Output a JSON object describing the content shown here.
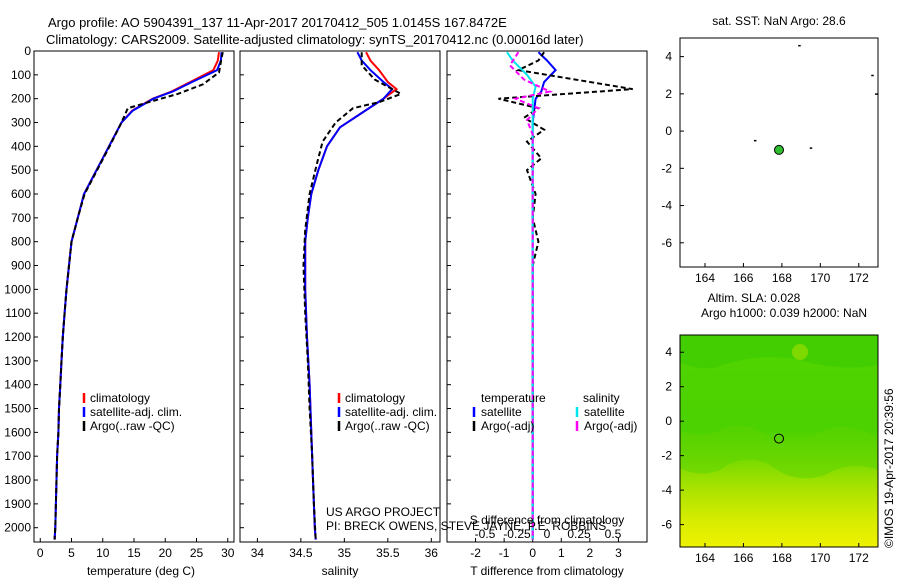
{
  "header": {
    "line1": "Argo profile: AO 5904391_137 11-Apr-2017 20170412_505 1.0145S 167.8472E",
    "line2": "Climatology: CARS2009. Satellite-adjusted climatology: synTS_20170412.nc (0.00016d later)"
  },
  "credit": {
    "line1": "US ARGO PROJECT",
    "line2": "PI: BRECK OWENS, STEVE JAYNE, P.E. ROBBINS"
  },
  "side_stamp": "©IMOS 19-Apr-2017 20:39:56",
  "colors": {
    "climatology": "#ff0000",
    "satellite": "#0000ff",
    "argo": "#000000",
    "sal_satellite": "#00e5ee",
    "sal_argo": "#ff00ff",
    "map_marker": "#2fbf2f"
  },
  "chart_data": [
    {
      "type": "line",
      "id": "temperature",
      "xlabel": "temperature (deg C)",
      "ylabel": "",
      "xlim": [
        -1,
        31
      ],
      "ylim": [
        2060,
        0
      ],
      "xticks": [
        0,
        5,
        10,
        15,
        20,
        25,
        30
      ],
      "yticks": [
        0,
        100,
        200,
        300,
        400,
        500,
        600,
        700,
        800,
        900,
        1000,
        1100,
        1200,
        1300,
        1400,
        1500,
        1600,
        1700,
        1800,
        1900,
        2000
      ],
      "legend": [
        "climatology",
        "satellite-adj. clim.",
        "Argo(..raw -QC)"
      ],
      "series": [
        {
          "name": "climatology",
          "style": "solid",
          "points": [
            [
              28.6,
              5
            ],
            [
              28.4,
              40
            ],
            [
              27.7,
              80
            ],
            [
              24,
              130
            ],
            [
              21,
              170
            ],
            [
              18,
              200
            ],
            [
              14.7,
              250
            ],
            [
              13,
              300
            ],
            [
              11,
              400
            ],
            [
              9,
              500
            ],
            [
              7,
              600
            ],
            [
              6,
              700
            ],
            [
              5,
              800
            ],
            [
              4.6,
              900
            ],
            [
              4.2,
              1000
            ],
            [
              3.9,
              1100
            ],
            [
              3.6,
              1200
            ],
            [
              3.4,
              1300
            ],
            [
              3.2,
              1400
            ],
            [
              3,
              1500
            ],
            [
              2.9,
              1600
            ],
            [
              2.7,
              1700
            ],
            [
              2.6,
              1800
            ],
            [
              2.5,
              1900
            ],
            [
              2.4,
              2000
            ],
            [
              2.3,
              2050
            ]
          ]
        },
        {
          "name": "satellite-adj. clim.",
          "style": "solid",
          "points": [
            [
              29,
              5
            ],
            [
              28.9,
              40
            ],
            [
              28.3,
              80
            ],
            [
              24.3,
              130
            ],
            [
              21.2,
              170
            ],
            [
              18.1,
              200
            ],
            [
              14.8,
              250
            ],
            [
              13,
              300
            ],
            [
              11,
              400
            ],
            [
              9,
              500
            ],
            [
              7,
              600
            ],
            [
              6,
              700
            ],
            [
              5,
              800
            ],
            [
              4.6,
              900
            ],
            [
              4.2,
              1000
            ],
            [
              3.9,
              1100
            ],
            [
              3.6,
              1200
            ],
            [
              3.4,
              1300
            ],
            [
              3.2,
              1400
            ],
            [
              3,
              1500
            ],
            [
              2.9,
              1600
            ],
            [
              2.7,
              1700
            ],
            [
              2.6,
              1800
            ],
            [
              2.5,
              1900
            ],
            [
              2.4,
              2000
            ],
            [
              2.3,
              2050
            ]
          ]
        },
        {
          "name": "Argo(..raw -QC)",
          "style": "dashed",
          "points": [
            [
              29.2,
              5
            ],
            [
              29,
              30
            ],
            [
              28.8,
              60
            ],
            [
              28.6,
              90
            ],
            [
              26,
              140
            ],
            [
              22,
              180
            ],
            [
              16,
              225
            ],
            [
              14,
              240
            ],
            [
              13,
              300
            ],
            [
              11.1,
              400
            ],
            [
              9.1,
              500
            ],
            [
              7.1,
              600
            ],
            [
              6,
              700
            ],
            [
              5,
              800
            ],
            [
              4.6,
              900
            ],
            [
              4.2,
              1000
            ],
            [
              3.9,
              1100
            ],
            [
              3.6,
              1200
            ],
            [
              3.4,
              1300
            ],
            [
              3.2,
              1400
            ],
            [
              3,
              1500
            ],
            [
              2.9,
              1600
            ],
            [
              2.7,
              1700
            ],
            [
              2.6,
              1800
            ],
            [
              2.5,
              1900
            ],
            [
              2.4,
              2000
            ],
            [
              2.3,
              2050
            ]
          ]
        }
      ]
    },
    {
      "type": "line",
      "id": "salinity",
      "xlabel": "salinity",
      "ylabel": "",
      "xlim": [
        33.8,
        36.1
      ],
      "ylim": [
        2060,
        0
      ],
      "xticks": [
        34,
        34.5,
        35,
        35.5,
        36
      ],
      "legend": [
        "climatology",
        "satellite-adj. clim.",
        "Argo(..raw -QC)"
      ],
      "series": [
        {
          "name": "climatology",
          "style": "solid",
          "points": [
            [
              35.25,
              5
            ],
            [
              35.3,
              40
            ],
            [
              35.4,
              80
            ],
            [
              35.5,
              130
            ],
            [
              35.6,
              160
            ],
            [
              35.45,
              200
            ],
            [
              35.2,
              260
            ],
            [
              34.95,
              320
            ],
            [
              34.8,
              400
            ],
            [
              34.7,
              500
            ],
            [
              34.62,
              600
            ],
            [
              34.58,
              700
            ],
            [
              34.55,
              800
            ],
            [
              34.55,
              1000
            ],
            [
              34.57,
              1200
            ],
            [
              34.6,
              1400
            ],
            [
              34.62,
              1600
            ],
            [
              34.64,
              1800
            ],
            [
              34.66,
              2000
            ],
            [
              34.67,
              2050
            ]
          ]
        },
        {
          "name": "satellite-adj. clim.",
          "style": "solid",
          "points": [
            [
              35.15,
              5
            ],
            [
              35.2,
              40
            ],
            [
              35.3,
              80
            ],
            [
              35.45,
              130
            ],
            [
              35.55,
              160
            ],
            [
              35.45,
              200
            ],
            [
              35.2,
              260
            ],
            [
              34.95,
              320
            ],
            [
              34.8,
              400
            ],
            [
              34.7,
              500
            ],
            [
              34.62,
              600
            ],
            [
              34.58,
              700
            ],
            [
              34.55,
              800
            ],
            [
              34.55,
              1000
            ],
            [
              34.57,
              1200
            ],
            [
              34.6,
              1400
            ],
            [
              34.62,
              1600
            ],
            [
              34.64,
              1800
            ],
            [
              34.66,
              2000
            ],
            [
              34.67,
              2050
            ]
          ]
        },
        {
          "name": "Argo(..raw -QC)",
          "style": "dashed",
          "points": [
            [
              35.2,
              5
            ],
            [
              35.2,
              60
            ],
            [
              35.35,
              120
            ],
            [
              35.65,
              180
            ],
            [
              35.4,
              215
            ],
            [
              35.1,
              240
            ],
            [
              34.9,
              300
            ],
            [
              34.75,
              380
            ],
            [
              34.68,
              480
            ],
            [
              34.6,
              600
            ],
            [
              34.55,
              750
            ],
            [
              34.53,
              900
            ],
            [
              34.55,
              1100
            ],
            [
              34.58,
              1300
            ],
            [
              34.6,
              1500
            ],
            [
              34.63,
              1700
            ],
            [
              34.65,
              1900
            ],
            [
              34.67,
              2050
            ]
          ]
        }
      ]
    },
    {
      "type": "line",
      "id": "difference",
      "xlabel": "T difference from climatology",
      "ylabel": "",
      "xlim": [
        -3,
        4
      ],
      "ylim": [
        2060,
        0
      ],
      "xticks": [
        -2,
        -1,
        0,
        1,
        2,
        3
      ],
      "secondary_axis_label": "S difference from climatology",
      "secondary_ticks": [
        "-0.5",
        "-0.25",
        "0",
        "0.25",
        "0.5"
      ],
      "legend_headers": [
        "temperature",
        "salinity"
      ],
      "legend": [
        "satellite",
        "Argo(-adj)",
        "satellite",
        "Argo(-adj)"
      ],
      "series": [
        {
          "name": "satellite",
          "group": "temperature",
          "style": "solid",
          "points": [
            [
              0.2,
              5
            ],
            [
              0.5,
              40
            ],
            [
              0.8,
              80
            ],
            [
              0.4,
              130
            ],
            [
              0.3,
              170
            ],
            [
              0.1,
              200
            ],
            [
              0,
              300
            ],
            [
              0,
              600
            ],
            [
              0,
              1000
            ],
            [
              0,
              1400
            ],
            [
              0,
              2050
            ]
          ]
        },
        {
          "name": "Argo(-adj)",
          "group": "temperature",
          "style": "dashed",
          "points": [
            [
              0.4,
              5
            ],
            [
              0.2,
              40
            ],
            [
              -0.5,
              80
            ],
            [
              3.5,
              160
            ],
            [
              -1.2,
              200
            ],
            [
              0.2,
              240
            ],
            [
              -0.3,
              280
            ],
            [
              0.4,
              330
            ],
            [
              -0.2,
              380
            ],
            [
              0.3,
              450
            ],
            [
              -0.2,
              500
            ],
            [
              0.1,
              600
            ],
            [
              0,
              700
            ],
            [
              0.2,
              800
            ],
            [
              0,
              900
            ],
            [
              0,
              1100
            ],
            [
              0,
              1500
            ],
            [
              0,
              2050
            ]
          ]
        },
        {
          "name": "satellite",
          "group": "salinity",
          "style": "solid",
          "points": [
            [
              -0.9,
              5
            ],
            [
              -0.7,
              40
            ],
            [
              -0.2,
              100
            ],
            [
              0.1,
              150
            ],
            [
              0,
              200
            ],
            [
              0,
              400
            ],
            [
              0,
              800
            ],
            [
              0,
              1200
            ],
            [
              0,
              2050
            ]
          ]
        },
        {
          "name": "Argo(-adj)",
          "group": "salinity",
          "style": "dashed",
          "points": [
            [
              -0.5,
              5
            ],
            [
              -0.8,
              60
            ],
            [
              -0.3,
              120
            ],
            [
              0.6,
              170
            ],
            [
              -0.6,
              200
            ],
            [
              0.2,
              240
            ],
            [
              -0.2,
              290
            ],
            [
              0,
              350
            ],
            [
              0,
              600
            ],
            [
              0,
              1000
            ],
            [
              0,
              2050
            ]
          ]
        }
      ]
    },
    {
      "type": "scatter",
      "id": "map_sst",
      "title": "sat. SST: NaN Argo: 28.6",
      "xlim": [
        162.7,
        173
      ],
      "ylim": [
        -7.3,
        5
      ],
      "xticks": [
        164,
        166,
        168,
        170,
        172
      ],
      "yticks": [
        -6,
        -4,
        -2,
        0,
        2,
        4
      ],
      "points": [
        [
          167.85,
          -1.01
        ]
      ],
      "specks": [
        [
          168.9,
          4.6
        ],
        [
          172.7,
          3
        ],
        [
          172.9,
          2
        ],
        [
          166.6,
          -0.5
        ],
        [
          169.5,
          -0.9
        ]
      ]
    },
    {
      "type": "heatmap",
      "id": "map_sla",
      "title_line1": "Altim. SLA: 0.028",
      "title_line2": "Argo h1000: 0.039 h2000: NaN",
      "xlim": [
        162.7,
        173
      ],
      "ylim": [
        -7.3,
        5
      ],
      "xticks": [
        164,
        166,
        168,
        170,
        172
      ],
      "yticks": [
        -6,
        -4,
        -2,
        0,
        2,
        4
      ],
      "points": [
        [
          167.85,
          -1.01
        ]
      ]
    }
  ]
}
